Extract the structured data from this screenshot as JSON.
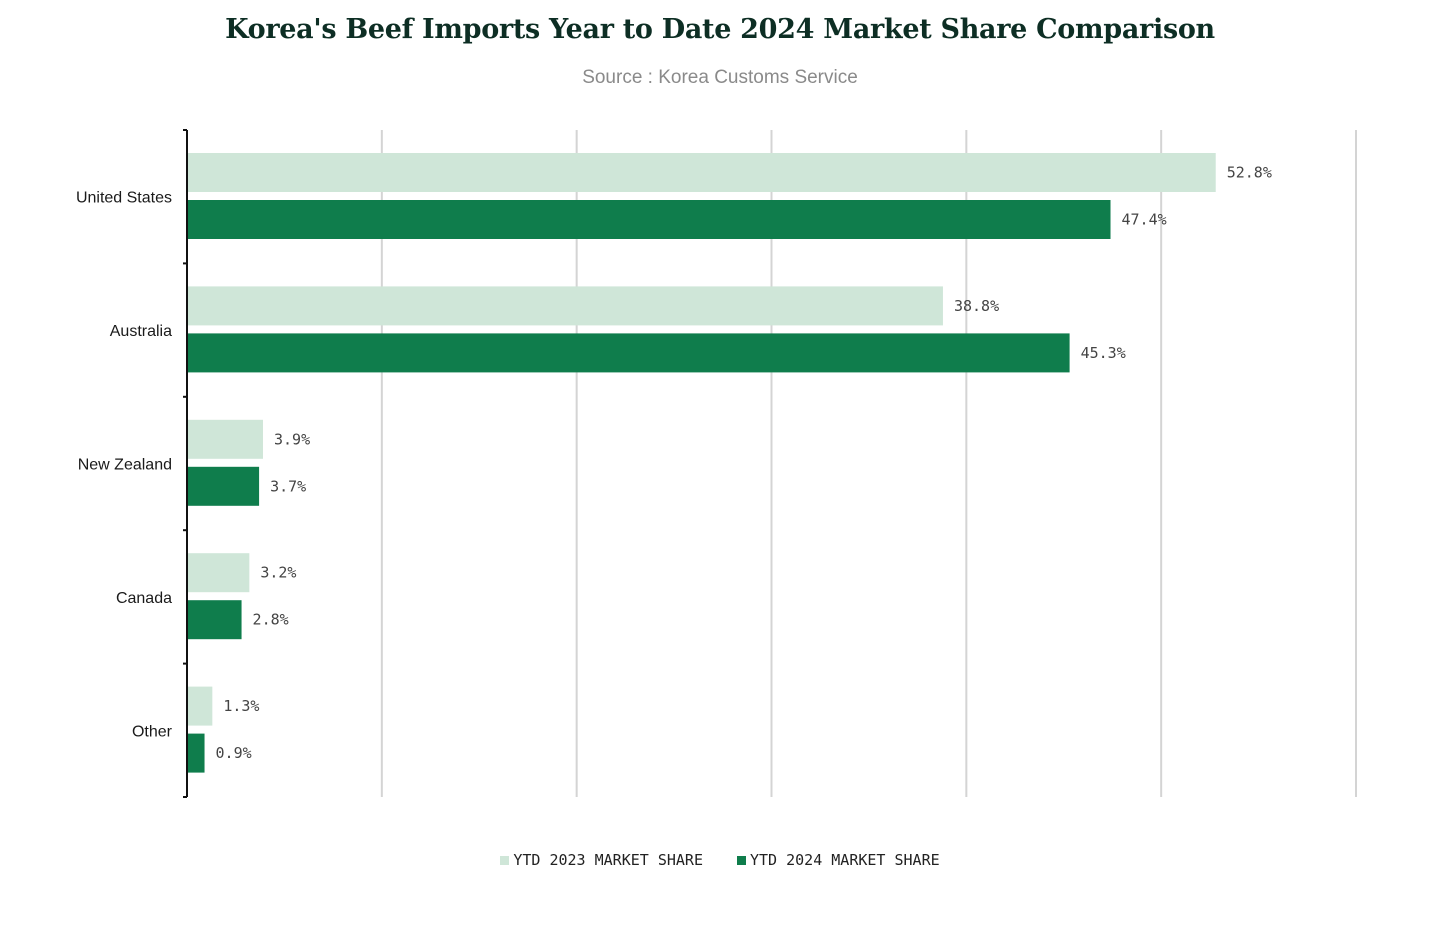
{
  "chart_data": {
    "type": "bar",
    "orientation": "horizontal",
    "title": "Korea's Beef Imports Year to Date 2024 Market Share Comparison",
    "subtitle": "Source : Korea Customs Service",
    "categories": [
      "United States",
      "Australia",
      "New Zealand",
      "Canada",
      "Other"
    ],
    "series": [
      {
        "name": "YTD 2023 MARKET SHARE",
        "color": "#cfe6d8",
        "values": [
          52.8,
          38.8,
          3.9,
          3.2,
          1.3
        ],
        "labels": [
          "52.8%",
          "38.8%",
          "3.9%",
          "3.2%",
          "1.3%"
        ]
      },
      {
        "name": "YTD 2024 MARKET SHARE",
        "color": "#0f7d4c",
        "values": [
          47.4,
          45.3,
          3.7,
          2.8,
          0.9
        ],
        "labels": [
          "47.4%",
          "45.3%",
          "3.7%",
          "2.8%",
          "0.9%"
        ]
      }
    ],
    "xlim": [
      0,
      60
    ],
    "grid": true,
    "legend_position": "bottom-center"
  }
}
